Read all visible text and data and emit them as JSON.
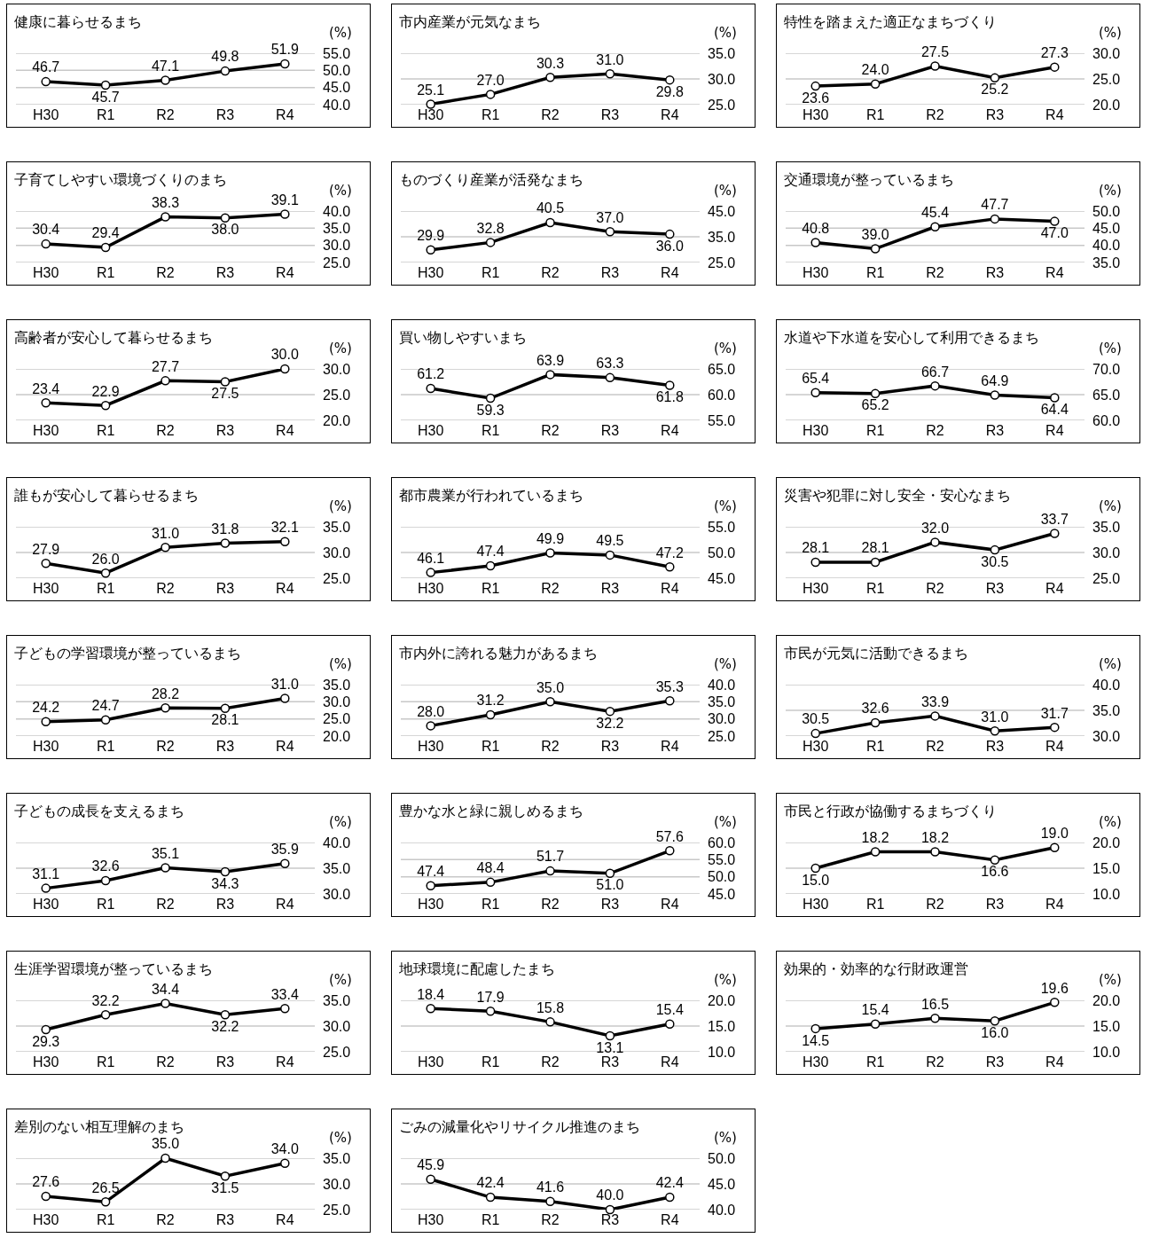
{
  "chart_data": [
    {
      "type": "line",
      "title": "健康に暮らせるまち",
      "ylabel": "(%)",
      "categories": [
        "H30",
        "R1",
        "R2",
        "R3",
        "R4"
      ],
      "values": [
        46.7,
        45.7,
        47.1,
        49.8,
        51.9
      ],
      "value_labels": [
        "46.7",
        "45.7",
        "47.1",
        "49.8",
        "51.9"
      ],
      "color": "#000000",
      "ylim": [
        40,
        55
      ],
      "yticks": [
        {
          "value": 40,
          "label": "40.0"
        },
        {
          "value": 45,
          "label": "45.0"
        },
        {
          "value": 50,
          "label": "50.0"
        },
        {
          "value": 55,
          "label": "55.0"
        }
      ],
      "grid": "y",
      "marker": "circle"
    },
    {
      "type": "line",
      "title": "市内産業が元気なまち",
      "ylabel": "(%)",
      "categories": [
        "H30",
        "R1",
        "R2",
        "R3",
        "R4"
      ],
      "values": [
        25.1,
        27.0,
        30.3,
        31.0,
        29.8
      ],
      "value_labels": [
        "25.1",
        "27.0",
        "30.3",
        "31.0",
        "29.8"
      ],
      "color": "#000000",
      "ylim": [
        25,
        35
      ],
      "yticks": [
        {
          "value": 25,
          "label": "25.0"
        },
        {
          "value": 30,
          "label": "30.0"
        },
        {
          "value": 35,
          "label": "35.0"
        }
      ],
      "grid": "y",
      "marker": "circle"
    },
    {
      "type": "line",
      "title": "特性を踏まえた適正なまちづくり",
      "ylabel": "(%)",
      "categories": [
        "H30",
        "R1",
        "R2",
        "R3",
        "R4"
      ],
      "values": [
        23.6,
        24.0,
        27.5,
        25.2,
        27.3
      ],
      "value_labels": [
        "23.6",
        "24.0",
        "27.5",
        "25.2",
        "27.3"
      ],
      "color": "#000000",
      "ylim": [
        20,
        30
      ],
      "yticks": [
        {
          "value": 20,
          "label": "20.0"
        },
        {
          "value": 25,
          "label": "25.0"
        },
        {
          "value": 30,
          "label": "30.0"
        }
      ],
      "grid": "y",
      "marker": "circle"
    },
    {
      "type": "line",
      "title": "子育てしやすい環境づくりのまち",
      "ylabel": "(%)",
      "categories": [
        "H30",
        "R1",
        "R2",
        "R3",
        "R4"
      ],
      "values": [
        30.4,
        29.4,
        38.3,
        38.0,
        39.1
      ],
      "value_labels": [
        "30.4",
        "29.4",
        "38.3",
        "38.0",
        "39.1"
      ],
      "color": "#000000",
      "ylim": [
        25,
        40
      ],
      "yticks": [
        {
          "value": 25,
          "label": "25.0"
        },
        {
          "value": 30,
          "label": "30.0"
        },
        {
          "value": 35,
          "label": "35.0"
        },
        {
          "value": 40,
          "label": "40.0"
        }
      ],
      "grid": "y",
      "marker": "circle"
    },
    {
      "type": "line",
      "title": "ものづくり産業が活発なまち",
      "ylabel": "(%)",
      "categories": [
        "H30",
        "R1",
        "R2",
        "R3",
        "R4"
      ],
      "values": [
        29.9,
        32.8,
        40.5,
        37.0,
        36.0
      ],
      "value_labels": [
        "29.9",
        "32.8",
        "40.5",
        "37.0",
        "36.0"
      ],
      "color": "#000000",
      "ylim": [
        25,
        45
      ],
      "yticks": [
        {
          "value": 25,
          "label": "25.0"
        },
        {
          "value": 35,
          "label": "35.0"
        },
        {
          "value": 45,
          "label": "45.0"
        }
      ],
      "grid": "y",
      "marker": "circle"
    },
    {
      "type": "line",
      "title": "交通環境が整っているまち",
      "ylabel": "(%)",
      "categories": [
        "H30",
        "R1",
        "R2",
        "R3",
        "R4"
      ],
      "values": [
        40.8,
        39.0,
        45.4,
        47.7,
        47.0
      ],
      "value_labels": [
        "40.8",
        "39.0",
        "45.4",
        "47.7",
        "47.0"
      ],
      "color": "#000000",
      "ylim": [
        35,
        50
      ],
      "yticks": [
        {
          "value": 35,
          "label": "35.0"
        },
        {
          "value": 40,
          "label": "40.0"
        },
        {
          "value": 45,
          "label": "45.0"
        },
        {
          "value": 50,
          "label": "50.0"
        }
      ],
      "grid": "y",
      "marker": "circle"
    },
    {
      "type": "line",
      "title": "高齢者が安心して暮らせるまち",
      "ylabel": "(%)",
      "categories": [
        "H30",
        "R1",
        "R2",
        "R3",
        "R4"
      ],
      "values": [
        23.4,
        22.9,
        27.7,
        27.5,
        30.0
      ],
      "value_labels": [
        "23.4",
        "22.9",
        "27.7",
        "27.5",
        "30.0"
      ],
      "color": "#000000",
      "ylim": [
        20,
        30
      ],
      "yticks": [
        {
          "value": 20,
          "label": "20.0"
        },
        {
          "value": 25,
          "label": "25.0"
        },
        {
          "value": 30,
          "label": "30.0"
        }
      ],
      "grid": "y",
      "marker": "circle"
    },
    {
      "type": "line",
      "title": "買い物しやすいまち",
      "ylabel": "(%)",
      "categories": [
        "H30",
        "R1",
        "R2",
        "R3",
        "R4"
      ],
      "values": [
        61.2,
        59.3,
        63.9,
        63.3,
        61.8
      ],
      "value_labels": [
        "61.2",
        "59.3",
        "63.9",
        "63.3",
        "61.8"
      ],
      "color": "#000000",
      "ylim": [
        55,
        65
      ],
      "yticks": [
        {
          "value": 55,
          "label": "55.0"
        },
        {
          "value": 60,
          "label": "60.0"
        },
        {
          "value": 65,
          "label": "65.0"
        }
      ],
      "grid": "y",
      "marker": "circle"
    },
    {
      "type": "line",
      "title": "水道や下水道を安心して利用できるまち",
      "ylabel": "(%)",
      "categories": [
        "H30",
        "R1",
        "R2",
        "R3",
        "R4"
      ],
      "values": [
        65.4,
        65.2,
        66.7,
        64.9,
        64.4
      ],
      "value_labels": [
        "65.4",
        "65.2",
        "66.7",
        "64.9",
        "64.4"
      ],
      "color": "#000000",
      "ylim": [
        60,
        70
      ],
      "yticks": [
        {
          "value": 60,
          "label": "60.0"
        },
        {
          "value": 65,
          "label": "65.0"
        },
        {
          "value": 70,
          "label": "70.0"
        }
      ],
      "grid": "y",
      "marker": "circle"
    },
    {
      "type": "line",
      "title": "誰もが安心して暮らせるまち",
      "ylabel": "(%)",
      "categories": [
        "H30",
        "R1",
        "R2",
        "R3",
        "R4"
      ],
      "values": [
        27.9,
        26.0,
        31.0,
        31.8,
        32.1
      ],
      "value_labels": [
        "27.9",
        "26.0",
        "31.0",
        "31.8",
        "32.1"
      ],
      "color": "#000000",
      "ylim": [
        25,
        35
      ],
      "yticks": [
        {
          "value": 25,
          "label": "25.0"
        },
        {
          "value": 30,
          "label": "30.0"
        },
        {
          "value": 35,
          "label": "35.0"
        }
      ],
      "grid": "y",
      "marker": "circle"
    },
    {
      "type": "line",
      "title": "都市農業が行われているまち",
      "ylabel": "(%)",
      "categories": [
        "H30",
        "R1",
        "R2",
        "R3",
        "R4"
      ],
      "values": [
        46.1,
        47.4,
        49.9,
        49.5,
        47.2
      ],
      "value_labels": [
        "46.1",
        "47.4",
        "49.9",
        "49.5",
        "47.2"
      ],
      "color": "#000000",
      "ylim": [
        45,
        55
      ],
      "yticks": [
        {
          "value": 45,
          "label": "45.0"
        },
        {
          "value": 50,
          "label": "50.0"
        },
        {
          "value": 55,
          "label": "55.0"
        }
      ],
      "grid": "y",
      "marker": "circle"
    },
    {
      "type": "line",
      "title": "災害や犯罪に対し安全・安心なまち",
      "ylabel": "(%)",
      "categories": [
        "H30",
        "R1",
        "R2",
        "R3",
        "R4"
      ],
      "values": [
        28.1,
        28.1,
        32.0,
        30.5,
        33.7
      ],
      "value_labels": [
        "28.1",
        "28.1",
        "32.0",
        "30.5",
        "33.7"
      ],
      "color": "#000000",
      "ylim": [
        25,
        35
      ],
      "yticks": [
        {
          "value": 25,
          "label": "25.0"
        },
        {
          "value": 30,
          "label": "30.0"
        },
        {
          "value": 35,
          "label": "35.0"
        }
      ],
      "grid": "y",
      "marker": "circle"
    },
    {
      "type": "line",
      "title": "子どもの学習環境が整っているまち",
      "ylabel": "(%)",
      "categories": [
        "H30",
        "R1",
        "R2",
        "R3",
        "R4"
      ],
      "values": [
        24.2,
        24.7,
        28.2,
        28.1,
        31.0
      ],
      "value_labels": [
        "24.2",
        "24.7",
        "28.2",
        "28.1",
        "31.0"
      ],
      "color": "#000000",
      "ylim": [
        20,
        35
      ],
      "yticks": [
        {
          "value": 20,
          "label": "20.0"
        },
        {
          "value": 25,
          "label": "25.0"
        },
        {
          "value": 30,
          "label": "30.0"
        },
        {
          "value": 35,
          "label": "35.0"
        }
      ],
      "grid": "y",
      "marker": "circle"
    },
    {
      "type": "line",
      "title": "市内外に誇れる魅力があるまち",
      "ylabel": "(%)",
      "categories": [
        "H30",
        "R1",
        "R2",
        "R3",
        "R4"
      ],
      "values": [
        28.0,
        31.2,
        35.0,
        32.2,
        35.3
      ],
      "value_labels": [
        "28.0",
        "31.2",
        "35.0",
        "32.2",
        "35.3"
      ],
      "color": "#000000",
      "ylim": [
        25,
        40
      ],
      "yticks": [
        {
          "value": 25,
          "label": "25.0"
        },
        {
          "value": 30,
          "label": "30.0"
        },
        {
          "value": 35,
          "label": "35.0"
        },
        {
          "value": 40,
          "label": "40.0"
        }
      ],
      "grid": "y",
      "marker": "circle"
    },
    {
      "type": "line",
      "title": "市民が元気に活動できるまち",
      "ylabel": "(%)",
      "categories": [
        "H30",
        "R1",
        "R2",
        "R3",
        "R4"
      ],
      "values": [
        30.5,
        32.6,
        33.9,
        31.0,
        31.7
      ],
      "value_labels": [
        "30.5",
        "32.6",
        "33.9",
        "31.0",
        "31.7"
      ],
      "color": "#000000",
      "ylim": [
        30,
        40
      ],
      "yticks": [
        {
          "value": 30,
          "label": "30.0"
        },
        {
          "value": 35,
          "label": "35.0"
        },
        {
          "value": 40,
          "label": "40.0"
        }
      ],
      "grid": "y",
      "marker": "circle"
    },
    {
      "type": "line",
      "title": "子どもの成長を支えるまち",
      "ylabel": "(%)",
      "categories": [
        "H30",
        "R1",
        "R2",
        "R3",
        "R4"
      ],
      "values": [
        31.1,
        32.6,
        35.1,
        34.3,
        35.9
      ],
      "value_labels": [
        "31.1",
        "32.6",
        "35.1",
        "34.3",
        "35.9"
      ],
      "color": "#000000",
      "ylim": [
        30,
        40
      ],
      "yticks": [
        {
          "value": 30,
          "label": "30.0"
        },
        {
          "value": 35,
          "label": "35.0"
        },
        {
          "value": 40,
          "label": "40.0"
        }
      ],
      "grid": "y",
      "marker": "circle"
    },
    {
      "type": "line",
      "title": "豊かな水と緑に親しめるまち",
      "ylabel": "(%)",
      "categories": [
        "H30",
        "R1",
        "R2",
        "R3",
        "R4"
      ],
      "values": [
        47.4,
        48.4,
        51.7,
        51.0,
        57.6
      ],
      "value_labels": [
        "47.4",
        "48.4",
        "51.7",
        "51.0",
        "57.6"
      ],
      "color": "#000000",
      "ylim": [
        45,
        60
      ],
      "yticks": [
        {
          "value": 45,
          "label": "45.0"
        },
        {
          "value": 50,
          "label": "50.0"
        },
        {
          "value": 55,
          "label": "55.0"
        },
        {
          "value": 60,
          "label": "60.0"
        }
      ],
      "grid": "y",
      "marker": "circle"
    },
    {
      "type": "line",
      "title": "市民と行政が協働するまちづくり",
      "ylabel": "(%)",
      "categories": [
        "H30",
        "R1",
        "R2",
        "R3",
        "R4"
      ],
      "values": [
        15.0,
        18.2,
        18.2,
        16.6,
        19.0
      ],
      "value_labels": [
        "15.0",
        "18.2",
        "18.2",
        "16.6",
        "19.0"
      ],
      "color": "#000000",
      "ylim": [
        10,
        20
      ],
      "yticks": [
        {
          "value": 10,
          "label": "10.0"
        },
        {
          "value": 15,
          "label": "15.0"
        },
        {
          "value": 20,
          "label": "20.0"
        }
      ],
      "grid": "y",
      "marker": "circle"
    },
    {
      "type": "line",
      "title": "生涯学習環境が整っているまち",
      "ylabel": "(%)",
      "categories": [
        "H30",
        "R1",
        "R2",
        "R3",
        "R4"
      ],
      "values": [
        29.3,
        32.2,
        34.4,
        32.2,
        33.4
      ],
      "value_labels": [
        "29.3",
        "32.2",
        "34.4",
        "32.2",
        "33.4"
      ],
      "color": "#000000",
      "ylim": [
        25,
        35
      ],
      "yticks": [
        {
          "value": 25,
          "label": "25.0"
        },
        {
          "value": 30,
          "label": "30.0"
        },
        {
          "value": 35,
          "label": "35.0"
        }
      ],
      "grid": "y",
      "marker": "circle"
    },
    {
      "type": "line",
      "title": "地球環境に配慮したまち",
      "ylabel": "(%)",
      "categories": [
        "H30",
        "R1",
        "R2",
        "R3",
        "R4"
      ],
      "values": [
        18.4,
        17.9,
        15.8,
        13.1,
        15.4
      ],
      "value_labels": [
        "18.4",
        "17.9",
        "15.8",
        "13.1",
        "15.4"
      ],
      "color": "#000000",
      "ylim": [
        10,
        20
      ],
      "yticks": [
        {
          "value": 10,
          "label": "10.0"
        },
        {
          "value": 15,
          "label": "15.0"
        },
        {
          "value": 20,
          "label": "20.0"
        }
      ],
      "grid": "y",
      "marker": "circle"
    },
    {
      "type": "line",
      "title": "効果的・効率的な行財政運営",
      "ylabel": "(%)",
      "categories": [
        "H30",
        "R1",
        "R2",
        "R3",
        "R4"
      ],
      "values": [
        14.5,
        15.4,
        16.5,
        16.0,
        19.6
      ],
      "value_labels": [
        "14.5",
        "15.4",
        "16.5",
        "16.0",
        "19.6"
      ],
      "color": "#000000",
      "ylim": [
        10,
        20
      ],
      "yticks": [
        {
          "value": 10,
          "label": "10.0"
        },
        {
          "value": 15,
          "label": "15.0"
        },
        {
          "value": 20,
          "label": "20.0"
        }
      ],
      "grid": "y",
      "marker": "circle"
    },
    {
      "type": "line",
      "title": "差別のない相互理解のまち",
      "ylabel": "(%)",
      "categories": [
        "H30",
        "R1",
        "R2",
        "R3",
        "R4"
      ],
      "values": [
        27.6,
        26.5,
        35.0,
        31.5,
        34.0
      ],
      "value_labels": [
        "27.6",
        "26.5",
        "35.0",
        "31.5",
        "34.0"
      ],
      "color": "#000000",
      "ylim": [
        25,
        35
      ],
      "yticks": [
        {
          "value": 25,
          "label": "25.0"
        },
        {
          "value": 30,
          "label": "30.0"
        },
        {
          "value": 35,
          "label": "35.0"
        }
      ],
      "grid": "y",
      "marker": "circle"
    },
    {
      "type": "line",
      "title": "ごみの減量化やリサイクル推進のまち",
      "ylabel": "(%)",
      "categories": [
        "H30",
        "R1",
        "R2",
        "R3",
        "R4"
      ],
      "values": [
        45.9,
        42.4,
        41.6,
        40.0,
        42.4
      ],
      "value_labels": [
        "45.9",
        "42.4",
        "41.6",
        "40.0",
        "42.4"
      ],
      "color": "#000000",
      "ylim": [
        40,
        50
      ],
      "yticks": [
        {
          "value": 40,
          "label": "40.0"
        },
        {
          "value": 45,
          "label": "45.0"
        },
        {
          "value": 50,
          "label": "50.0"
        }
      ],
      "grid": "y",
      "marker": "circle"
    }
  ]
}
